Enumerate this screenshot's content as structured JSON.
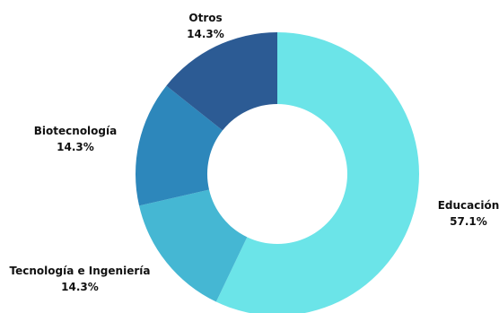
{
  "chart_data": {
    "type": "pie",
    "variant": "donut",
    "title": "",
    "categories": [
      "Educación",
      "Tecnología e Ingeniería",
      "Biotecnología",
      "Otros"
    ],
    "values": [
      57.1,
      14.3,
      14.3,
      14.3
    ],
    "value_labels": [
      "57.1%",
      "14.3%",
      "14.3%",
      "14.3%"
    ],
    "colors": [
      "#6be4e8",
      "#45b7d3",
      "#2d87bb",
      "#2c5b94"
    ],
    "start_angle": "12 o'clock",
    "direction": "clockwise",
    "legend": "none (labels beside slices)"
  }
}
